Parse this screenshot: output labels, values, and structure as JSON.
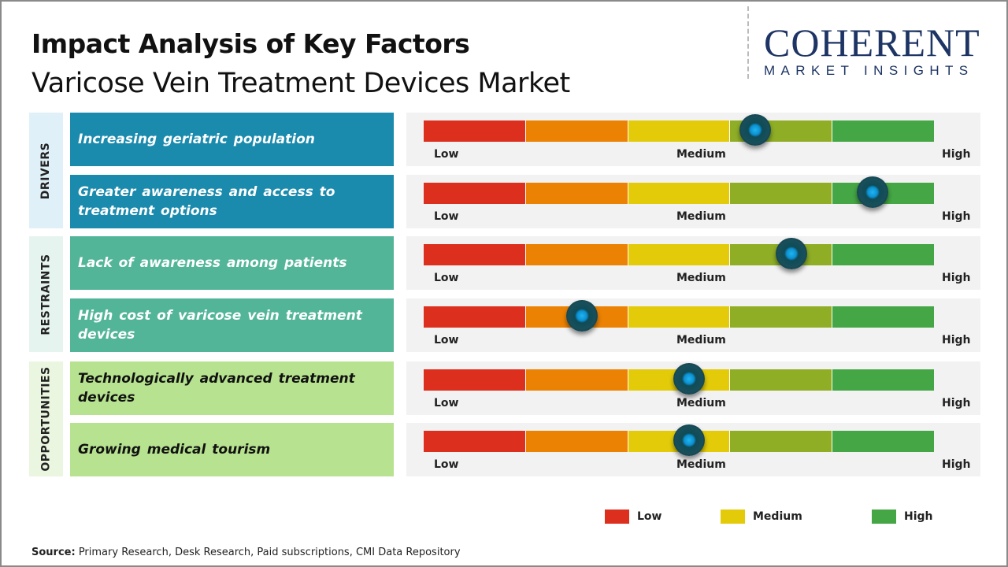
{
  "header": {
    "title": "Impact Analysis of Key Factors",
    "subtitle": "Varicose Vein Treatment Devices Market"
  },
  "logo": {
    "line1": "COHERENT",
    "line2": "MARKET INSIGHTS"
  },
  "colors": {
    "drivers_cat": "#dff0f8",
    "drivers": "#1a8aad",
    "restraints_cat": "#e6f4ef",
    "restraints": "#52b598",
    "opportunities_cat": "#eaf6df",
    "opportunities": "#b7e390",
    "scale": [
      "#dc2f1e",
      "#ec8203",
      "#e3cb09",
      "#8fae26",
      "#44a644"
    ]
  },
  "chart_data": {
    "type": "gauge",
    "scale_labels": [
      "Low",
      "Medium",
      "High"
    ],
    "groups": [
      {
        "category": "DRIVERS",
        "factors": [
          {
            "label": "Increasing geriatric population",
            "impact": 0.65
          },
          {
            "label": "Greater awareness and access to treatment options",
            "impact": 0.88
          }
        ]
      },
      {
        "category": "RESTRAINTS",
        "factors": [
          {
            "label": "Lack of awareness among patients",
            "impact": 0.72
          },
          {
            "label": "High cost of varicose vein treatment devices",
            "impact": 0.31
          }
        ]
      },
      {
        "category": "OPPORTUNITIES",
        "factors": [
          {
            "label": "Technologically advanced treatment devices",
            "impact": 0.52
          },
          {
            "label": "Growing medical tourism",
            "impact": 0.52
          }
        ]
      }
    ],
    "legend": [
      {
        "label": "Low",
        "color": "#dc2f1e"
      },
      {
        "label": "Medium",
        "color": "#e3cb09"
      },
      {
        "label": "High",
        "color": "#44a644"
      }
    ]
  },
  "source": {
    "label": "Source:",
    "text": " Primary Research, Desk Research, Paid subscriptions, CMI Data Repository"
  }
}
